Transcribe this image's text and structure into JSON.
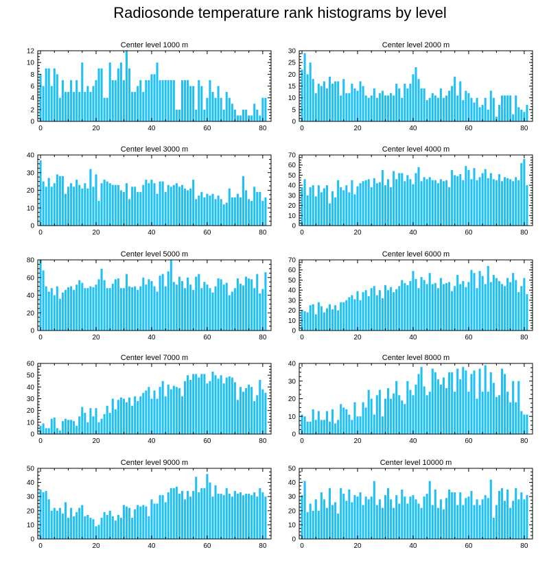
{
  "figure_title": "Radiosonde temperature rank histograms by level",
  "colors": {
    "bar": "#1ec0f6",
    "axis": "#000000"
  },
  "chart_data": [
    {
      "type": "bar",
      "title": "Center level 1000 m",
      "xlim": [
        -1,
        83
      ],
      "ylim": [
        0,
        12
      ],
      "xticks": [
        0,
        20,
        40,
        60,
        80
      ],
      "yticks": [
        0,
        2,
        4,
        6,
        8,
        10,
        12
      ],
      "values": [
        8,
        6,
        9,
        9,
        6,
        9,
        8,
        4,
        7,
        5,
        5,
        7,
        5,
        7,
        5,
        10,
        5,
        6,
        5,
        6,
        7,
        9,
        9,
        4,
        4,
        10,
        7,
        7,
        9,
        10,
        7,
        12,
        9,
        5,
        5,
        6,
        7,
        5,
        7,
        7,
        8,
        8,
        10,
        7,
        7,
        7,
        7,
        7,
        7,
        2,
        2,
        7,
        7,
        7,
        6,
        6,
        2,
        7,
        6,
        2,
        4,
        7,
        5,
        4,
        6,
        4,
        2,
        5,
        4,
        3,
        2,
        1,
        1,
        2,
        2,
        1,
        1,
        3,
        2,
        1,
        4,
        4
      ]
    },
    {
      "type": "bar",
      "title": "Center level 2000 m",
      "xlim": [
        -1,
        83
      ],
      "ylim": [
        0,
        30
      ],
      "xticks": [
        0,
        20,
        40,
        60,
        80
      ],
      "yticks": [
        0,
        5,
        10,
        15,
        20,
        25,
        30
      ],
      "values": [
        22,
        29,
        20,
        25,
        18,
        12,
        16,
        15,
        17,
        14,
        19,
        16,
        17,
        17,
        11,
        18,
        12,
        12,
        16,
        14,
        13,
        17,
        15,
        11,
        10,
        11,
        14,
        10,
        12,
        13,
        11,
        11,
        12,
        11,
        16,
        14,
        10,
        16,
        14,
        16,
        20,
        23,
        18,
        14,
        14,
        9,
        10,
        12,
        11,
        10,
        14,
        10,
        11,
        13,
        15,
        19,
        11,
        17,
        9,
        13,
        12,
        10,
        8,
        10,
        6,
        7,
        10,
        5,
        13,
        10,
        2,
        7,
        11,
        11,
        11,
        11,
        3,
        11,
        6,
        5,
        4,
        7
      ]
    },
    {
      "type": "bar",
      "title": "Center level 3000 m",
      "xlim": [
        -1,
        83
      ],
      "ylim": [
        0,
        40
      ],
      "xticks": [
        0,
        20,
        40,
        60,
        80
      ],
      "yticks": [
        0,
        10,
        20,
        30,
        40
      ],
      "values": [
        37,
        25,
        22,
        27,
        22,
        24,
        29,
        28,
        28,
        18,
        22,
        24,
        22,
        26,
        23,
        21,
        24,
        21,
        32,
        22,
        29,
        14,
        24,
        26,
        25,
        24,
        23,
        23,
        23,
        20,
        19,
        24,
        15,
        22,
        22,
        19,
        19,
        23,
        26,
        24,
        26,
        24,
        18,
        25,
        25,
        19,
        23,
        22,
        23,
        24,
        22,
        23,
        21,
        20,
        21,
        26,
        15,
        17,
        19,
        16,
        18,
        17,
        18,
        15,
        17,
        15,
        12,
        13,
        21,
        16,
        16,
        18,
        16,
        28,
        20,
        15,
        14,
        22,
        19,
        19,
        14,
        16
      ]
    },
    {
      "type": "bar",
      "title": "Center level 4000 m",
      "xlim": [
        -1,
        83
      ],
      "ylim": [
        0,
        70
      ],
      "xticks": [
        0,
        20,
        40,
        60,
        80
      ],
      "yticks": [
        0,
        10,
        20,
        30,
        40,
        50,
        60,
        70
      ],
      "values": [
        38,
        46,
        30,
        38,
        40,
        29,
        40,
        33,
        37,
        40,
        22,
        34,
        28,
        45,
        38,
        35,
        40,
        33,
        45,
        31,
        39,
        42,
        44,
        45,
        46,
        38,
        47,
        42,
        43,
        55,
        40,
        46,
        38,
        54,
        46,
        52,
        52,
        44,
        50,
        46,
        41,
        52,
        58,
        44,
        48,
        46,
        48,
        45,
        45,
        42,
        46,
        44,
        45,
        38,
        55,
        50,
        49,
        51,
        45,
        59,
        55,
        46,
        57,
        45,
        48,
        52,
        56,
        47,
        52,
        46,
        45,
        51,
        44,
        48,
        47,
        46,
        44,
        48,
        45,
        62,
        66,
        40
      ]
    },
    {
      "type": "bar",
      "title": "Center level 5000 m",
      "xlim": [
        -1,
        83
      ],
      "ylim": [
        0,
        80
      ],
      "xticks": [
        0,
        20,
        40,
        60,
        80
      ],
      "yticks": [
        0,
        20,
        40,
        60,
        80
      ],
      "values": [
        80,
        68,
        50,
        44,
        48,
        40,
        50,
        36,
        43,
        46,
        49,
        50,
        46,
        52,
        57,
        54,
        48,
        48,
        50,
        49,
        52,
        58,
        70,
        57,
        48,
        48,
        53,
        58,
        59,
        48,
        48,
        64,
        50,
        49,
        50,
        46,
        50,
        60,
        52,
        58,
        56,
        50,
        44,
        62,
        64,
        50,
        67,
        80,
        55,
        52,
        61,
        56,
        48,
        60,
        52,
        46,
        61,
        64,
        48,
        55,
        52,
        48,
        43,
        50,
        59,
        58,
        52,
        54,
        40,
        44,
        48,
        59,
        53,
        51,
        61,
        59,
        58,
        48,
        64,
        42,
        47,
        66
      ]
    },
    {
      "type": "bar",
      "title": "Center level 6000 m",
      "xlim": [
        -1,
        83
      ],
      "ylim": [
        0,
        70
      ],
      "xticks": [
        0,
        20,
        40,
        60,
        80
      ],
      "yticks": [
        0,
        10,
        20,
        30,
        40,
        50,
        60,
        70
      ],
      "values": [
        20,
        19,
        18,
        25,
        26,
        16,
        28,
        24,
        18,
        22,
        26,
        21,
        25,
        20,
        28,
        28,
        30,
        33,
        35,
        31,
        39,
        30,
        38,
        40,
        34,
        42,
        44,
        35,
        40,
        32,
        45,
        40,
        43,
        38,
        41,
        44,
        50,
        47,
        45,
        49,
        59,
        51,
        42,
        53,
        50,
        46,
        57,
        46,
        47,
        42,
        52,
        46,
        47,
        48,
        39,
        44,
        55,
        46,
        49,
        43,
        48,
        60,
        57,
        42,
        59,
        54,
        46,
        64,
        48,
        55,
        52,
        49,
        46,
        44,
        52,
        48,
        57,
        50,
        38,
        44,
        52,
        36
      ]
    },
    {
      "type": "bar",
      "title": "Center level 7000 m",
      "xlim": [
        -1,
        83
      ],
      "ylim": [
        0,
        60
      ],
      "xticks": [
        0,
        20,
        40,
        60,
        80
      ],
      "yticks": [
        0,
        10,
        20,
        30,
        40,
        50,
        60
      ],
      "values": [
        7,
        9,
        5,
        5,
        13,
        14,
        5,
        3,
        11,
        13,
        12,
        12,
        11,
        7,
        15,
        23,
        18,
        10,
        22,
        15,
        22,
        10,
        13,
        17,
        24,
        18,
        30,
        21,
        29,
        31,
        30,
        27,
        31,
        24,
        32,
        28,
        32,
        35,
        37,
        40,
        30,
        37,
        30,
        40,
        45,
        32,
        42,
        38,
        41,
        40,
        39,
        32,
        45,
        50,
        46,
        51,
        51,
        48,
        51,
        51,
        43,
        45,
        53,
        50,
        47,
        50,
        43,
        48,
        49,
        48,
        44,
        29,
        40,
        36,
        39,
        42,
        40,
        28,
        33,
        46,
        38,
        35
      ]
    },
    {
      "type": "bar",
      "title": "Center level 8000 m",
      "xlim": [
        -1,
        83
      ],
      "ylim": [
        0,
        40
      ],
      "xticks": [
        0,
        20,
        40,
        60,
        80
      ],
      "yticks": [
        0,
        10,
        20,
        30,
        40
      ],
      "values": [
        11,
        10,
        7,
        7,
        14,
        8,
        13,
        8,
        8,
        13,
        7,
        14,
        6,
        8,
        17,
        15,
        14,
        11,
        8,
        18,
        10,
        10,
        18,
        15,
        25,
        20,
        11,
        22,
        25,
        10,
        20,
        26,
        20,
        23,
        30,
        22,
        19,
        17,
        30,
        25,
        22,
        28,
        34,
        38,
        27,
        22,
        24,
        37,
        35,
        31,
        28,
        32,
        26,
        35,
        35,
        24,
        37,
        31,
        38,
        36,
        24,
        34,
        36,
        20,
        37,
        24,
        39,
        24,
        35,
        29,
        21,
        22,
        37,
        34,
        24,
        18,
        30,
        18,
        30,
        13,
        11,
        11
      ]
    },
    {
      "type": "bar",
      "title": "Center level 9000 m",
      "xlim": [
        -1,
        83
      ],
      "ylim": [
        0,
        50
      ],
      "xticks": [
        0,
        20,
        40,
        60,
        80
      ],
      "yticks": [
        0,
        10,
        20,
        30,
        40,
        50
      ],
      "values": [
        35,
        33,
        34,
        28,
        20,
        22,
        20,
        22,
        18,
        26,
        15,
        22,
        16,
        19,
        22,
        24,
        16,
        17,
        15,
        14,
        9,
        10,
        15,
        19,
        17,
        20,
        16,
        13,
        17,
        15,
        24,
        23,
        22,
        15,
        21,
        24,
        23,
        24,
        23,
        16,
        28,
        25,
        25,
        31,
        31,
        26,
        33,
        36,
        36,
        37,
        32,
        34,
        28,
        34,
        30,
        34,
        44,
        33,
        36,
        36,
        46,
        40,
        30,
        38,
        32,
        32,
        31,
        36,
        32,
        30,
        34,
        32,
        33,
        31,
        32,
        32,
        31,
        33,
        30,
        36,
        33,
        30
      ]
    },
    {
      "type": "bar",
      "title": "Center level 10000 m",
      "xlim": [
        -1,
        83
      ],
      "ylim": [
        0,
        50
      ],
      "xticks": [
        0,
        20,
        40,
        60,
        80
      ],
      "yticks": [
        0,
        10,
        20,
        30,
        40,
        50
      ],
      "values": [
        31,
        41,
        19,
        25,
        20,
        28,
        20,
        33,
        28,
        22,
        36,
        24,
        26,
        18,
        36,
        32,
        27,
        35,
        26,
        31,
        30,
        33,
        24,
        30,
        28,
        30,
        41,
        24,
        28,
        22,
        31,
        36,
        28,
        22,
        31,
        25,
        35,
        30,
        25,
        30,
        31,
        28,
        25,
        22,
        30,
        32,
        41,
        24,
        35,
        22,
        28,
        21,
        29,
        35,
        33,
        33,
        24,
        33,
        24,
        29,
        30,
        34,
        24,
        28,
        24,
        28,
        31,
        29,
        42,
        15,
        24,
        34,
        36,
        27,
        35,
        22,
        27,
        36,
        28,
        33,
        28,
        31
      ]
    }
  ]
}
